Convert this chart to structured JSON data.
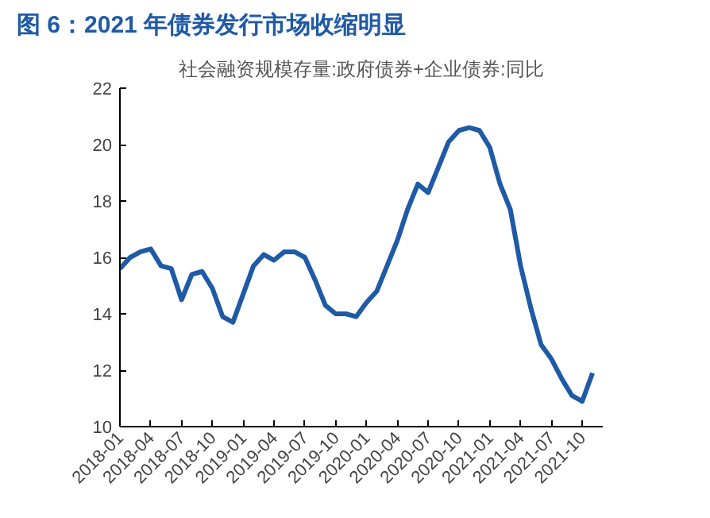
{
  "chart_data": {
    "type": "line",
    "title": "图 6：2021 年债券发行市场收缩明显",
    "subtitle": "社会融资规模存量:政府债券+企业债券:同比",
    "x": [
      "2018-01",
      "2018-02",
      "2018-03",
      "2018-04",
      "2018-05",
      "2018-06",
      "2018-07",
      "2018-08",
      "2018-09",
      "2018-10",
      "2018-11",
      "2018-12",
      "2019-01",
      "2019-02",
      "2019-03",
      "2019-04",
      "2019-05",
      "2019-06",
      "2019-07",
      "2019-08",
      "2019-09",
      "2019-10",
      "2019-11",
      "2019-12",
      "2020-01",
      "2020-02",
      "2020-03",
      "2020-04",
      "2020-05",
      "2020-06",
      "2020-07",
      "2020-08",
      "2020-09",
      "2020-10",
      "2020-11",
      "2020-12",
      "2021-01",
      "2021-02",
      "2021-03",
      "2021-04",
      "2021-05",
      "2021-06",
      "2021-07",
      "2021-08",
      "2021-09",
      "2021-10",
      "2021-11"
    ],
    "series": [
      {
        "color": "#1f5aa6",
        "values": [
          15.6,
          16.0,
          16.2,
          16.3,
          15.7,
          15.6,
          14.5,
          15.4,
          15.5,
          14.9,
          13.9,
          13.7,
          14.7,
          15.7,
          16.1,
          15.9,
          16.2,
          16.2,
          16.0,
          15.2,
          14.3,
          14.0,
          14.0,
          13.9,
          14.4,
          14.8,
          15.7,
          16.6,
          17.7,
          18.6,
          18.3,
          19.2,
          20.1,
          20.5,
          20.6,
          20.5,
          19.9,
          18.6,
          17.7,
          15.7,
          14.2,
          12.9,
          12.4,
          11.7,
          11.1,
          10.9,
          11.9
        ]
      }
    ],
    "xlim": [
      "2018-01",
      "2021-12"
    ],
    "xticks": [
      "2018-01",
      "2018-04",
      "2018-07",
      "2018-10",
      "2019-01",
      "2019-04",
      "2019-07",
      "2019-10",
      "2020-01",
      "2020-04",
      "2020-07",
      "2020-10",
      "2021-01",
      "2021-04",
      "2021-07",
      "2021-10"
    ],
    "ylim": [
      10,
      22
    ],
    "yticks": [
      10,
      12,
      14,
      16,
      18,
      20,
      22
    ],
    "grid": false
  }
}
